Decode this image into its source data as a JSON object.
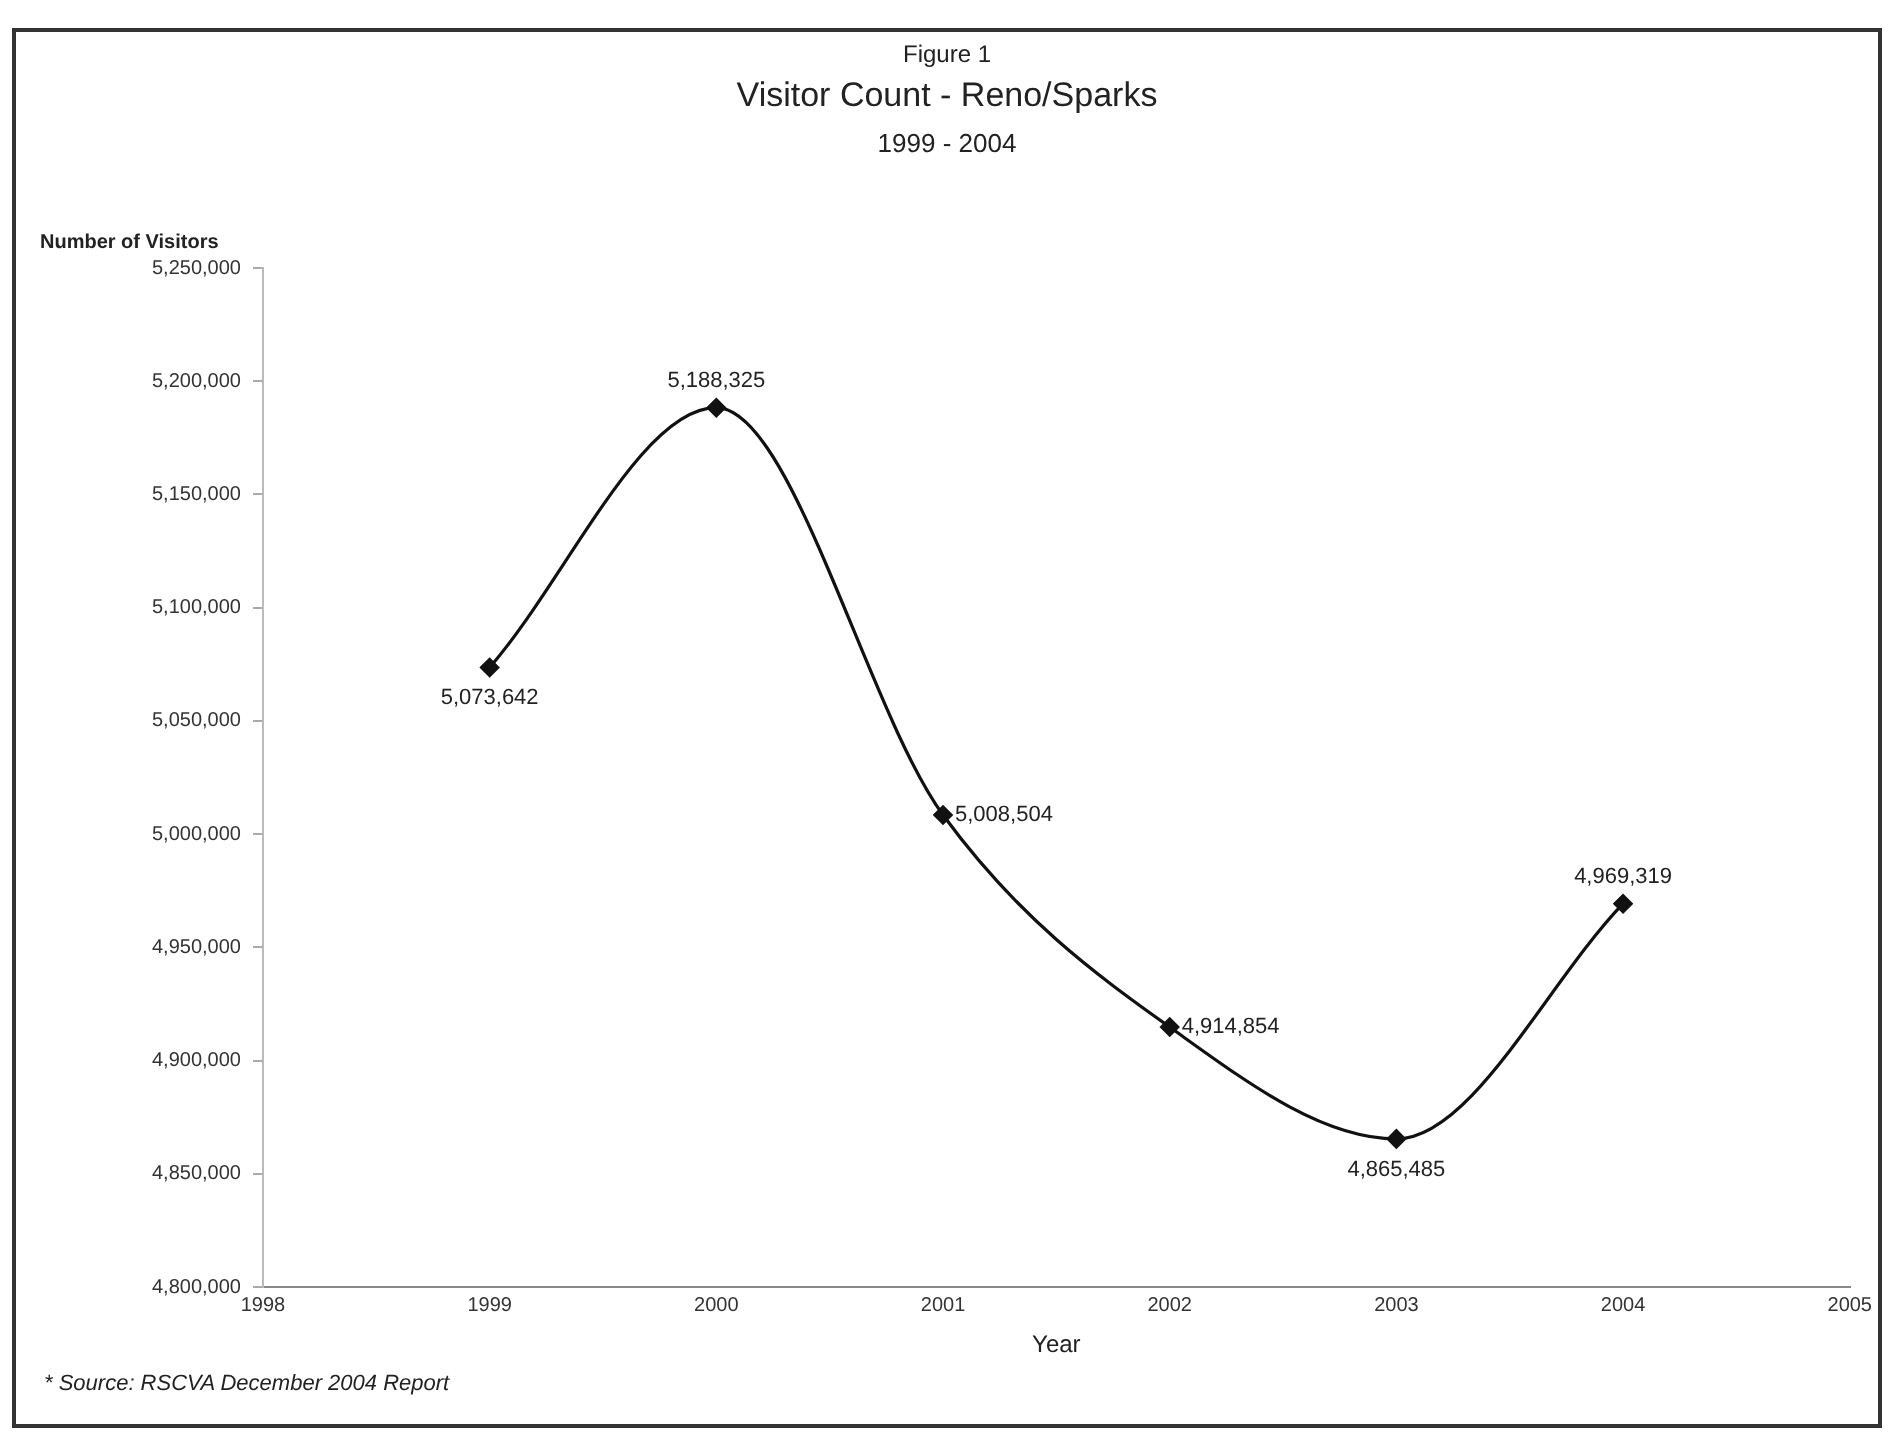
{
  "chart_data": {
    "type": "line",
    "title": "Visitor Count - Reno/Sparks",
    "subtitle": "1999 - 2004",
    "xlabel": "Year",
    "ylabel": "Number of Visitors",
    "annotations": [
      "Figure 1",
      "* Source:  RSCVA December 2004 Report"
    ],
    "x": [
      1999,
      2000,
      2001,
      2002,
      2003,
      2004
    ],
    "series": [
      {
        "color": "#111111",
        "values": [
          5073642,
          5188325,
          5008504,
          4914854,
          4865485,
          4969319
        ],
        "value_labels": [
          "5,073,642",
          "5,188,325",
          "5,008,504",
          "4,914,854",
          "4,865,485",
          "4,969,319"
        ]
      }
    ],
    "xlim": [
      1998,
      2005
    ],
    "xticks": [
      1998,
      1999,
      2000,
      2001,
      2002,
      2003,
      2004,
      2005
    ],
    "ylim": [
      4800000,
      5250000
    ],
    "yticks": [
      {
        "value": 4800000,
        "label": "4,800,000"
      },
      {
        "value": 4850000,
        "label": "4,850,000"
      },
      {
        "value": 4900000,
        "label": "4,900,000"
      },
      {
        "value": 4950000,
        "label": "4,950,000"
      },
      {
        "value": 5000000,
        "label": "5,000,000"
      },
      {
        "value": 5050000,
        "label": "5,050,000"
      },
      {
        "value": 5100000,
        "label": "5,100,000"
      },
      {
        "value": 5150000,
        "label": "5,150,000"
      },
      {
        "value": 5200000,
        "label": "5,200,000"
      },
      {
        "value": 5250000,
        "label": "5,250,000"
      }
    ],
    "grid": false,
    "legend": false,
    "marker": "diamond",
    "line_style": "solid"
  }
}
